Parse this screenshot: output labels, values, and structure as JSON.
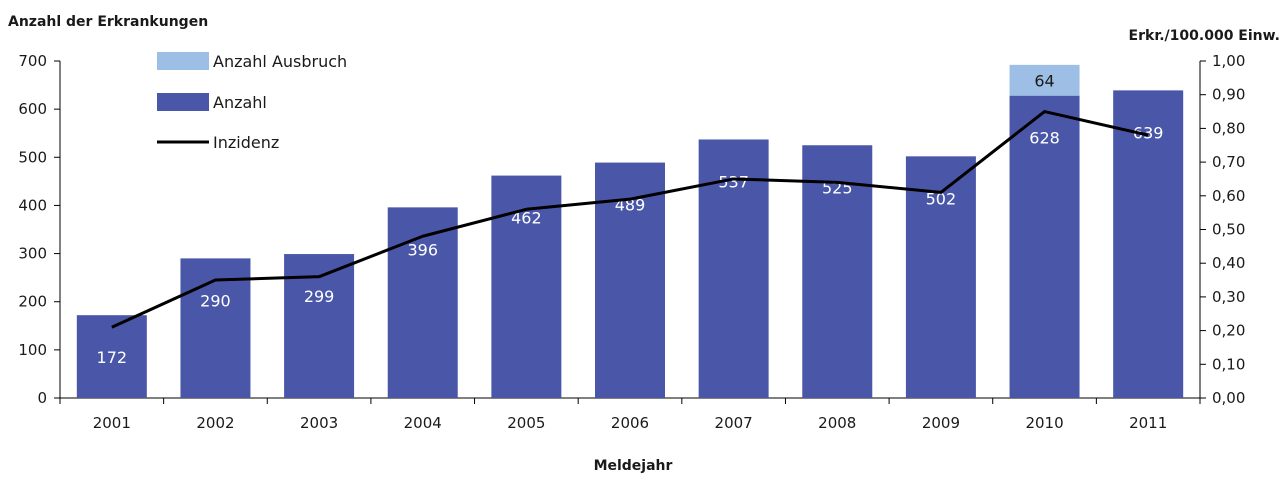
{
  "chart_data": {
    "type": "bar",
    "title": "",
    "ylabel_left": "Anzahl der Erkrankungen",
    "ylabel_right": "Erkr./100.000 Einw.",
    "xlabel": "Meldejahr",
    "categories": [
      "2001",
      "2002",
      "2003",
      "2004",
      "2005",
      "2006",
      "2007",
      "2008",
      "2009",
      "2010",
      "2011"
    ],
    "ylim_left": [
      0,
      700
    ],
    "yticks_left": [
      "0",
      "100",
      "200",
      "300",
      "400",
      "500",
      "600",
      "700"
    ],
    "ylim_right": [
      0,
      1.0
    ],
    "yticks_right": [
      "0,00",
      "0,10",
      "0,20",
      "0,30",
      "0,40",
      "0,50",
      "0,60",
      "0,70",
      "0,80",
      "0,90",
      "1,00"
    ],
    "series": [
      {
        "name": "Anzahl",
        "kind": "bar",
        "axis": "left",
        "color": "#4a57a8",
        "values": [
          172,
          290,
          299,
          396,
          462,
          489,
          537,
          525,
          502,
          628,
          639
        ],
        "labels": [
          "172",
          "290",
          "299",
          "396",
          "462",
          "489",
          "537",
          "525",
          "502",
          "628",
          "639"
        ]
      },
      {
        "name": "Anzahl Ausbruch",
        "kind": "bar-stacked",
        "axis": "left",
        "color": "#9dbfe6",
        "values": [
          0,
          0,
          0,
          0,
          0,
          0,
          0,
          0,
          0,
          64,
          0
        ],
        "labels": [
          "",
          "",
          "",
          "",
          "",
          "",
          "",
          "",
          "",
          "64",
          ""
        ]
      },
      {
        "name": "Inzidenz",
        "kind": "line",
        "axis": "right",
        "color": "#000000",
        "values": [
          0.21,
          0.35,
          0.36,
          0.48,
          0.56,
          0.59,
          0.65,
          0.64,
          0.61,
          0.85,
          0.78
        ]
      }
    ],
    "legend": {
      "placement": "top-left",
      "items": [
        {
          "label": "Anzahl Ausbruch",
          "kind": "bar",
          "color": "#9dbfe6"
        },
        {
          "label": "Anzahl",
          "kind": "bar",
          "color": "#4a57a8"
        },
        {
          "label": "Inzidenz",
          "kind": "line",
          "color": "#000000"
        }
      ]
    },
    "grid": false
  }
}
